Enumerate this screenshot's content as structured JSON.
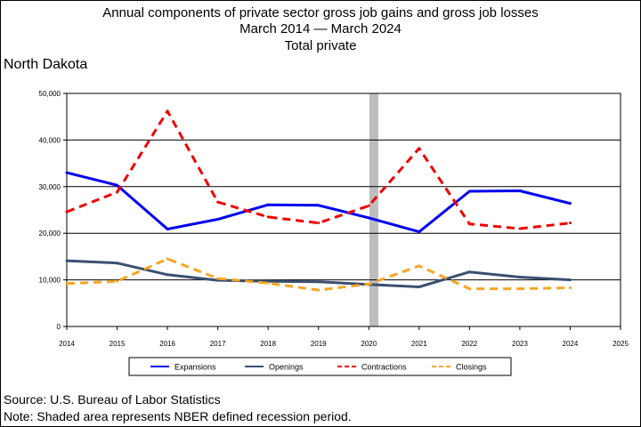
{
  "title": {
    "line1": "Annual components of private sector gross job gains and gross job losses",
    "line2": "March 2014 — March 2024",
    "line3": "Total private"
  },
  "region": "North Dakota",
  "source": "Source: U.S. Bureau of Labor Statistics",
  "note": "Note: Shaded area represents NBER defined recession period.",
  "chart_data": {
    "type": "line",
    "x": [
      2014,
      2015,
      2016,
      2017,
      2018,
      2019,
      2020,
      2021,
      2022,
      2023,
      2024
    ],
    "x_ticks": [
      2014,
      2015,
      2016,
      2017,
      2018,
      2019,
      2020,
      2021,
      2022,
      2023,
      2024,
      2025
    ],
    "x_tick_labels": [
      "2014",
      "2015",
      "2016",
      "2017",
      "2018",
      "2019",
      "2020",
      "2021",
      "2022",
      "2023",
      "2024",
      "2025"
    ],
    "xlim": [
      2014,
      2025
    ],
    "ylim": [
      0,
      50000
    ],
    "y_ticks": [
      0,
      10000,
      20000,
      30000,
      40000,
      50000
    ],
    "y_tick_labels": [
      "0",
      "10,000",
      "20,000",
      "30,000",
      "40,000",
      "50,000"
    ],
    "grid": "horizontal",
    "legend_position": "bottom",
    "recession": {
      "x": 2020.1,
      "color": "#bdbdbd"
    },
    "series": [
      {
        "name": "Expansions",
        "color": "#0000ee",
        "dash": "solid",
        "values": [
          33000,
          30300,
          20900,
          23000,
          26100,
          26000,
          23300,
          20300,
          29000,
          29100,
          26400
        ]
      },
      {
        "name": "Openings",
        "color": "#3a5070",
        "dash": "solid",
        "values": [
          14100,
          13600,
          11100,
          9900,
          9700,
          9600,
          9000,
          8500,
          11700,
          10600,
          10000
        ]
      },
      {
        "name": "Contractions",
        "color": "#ee0000",
        "dash": "dashed",
        "values": [
          24600,
          28800,
          46200,
          26700,
          23500,
          22200,
          25900,
          38200,
          22000,
          21000,
          22200
        ]
      },
      {
        "name": "Closings",
        "color": "#f5a623",
        "dash": "dashed",
        "values": [
          9200,
          9700,
          14500,
          10300,
          9300,
          7800,
          9100,
          13000,
          8100,
          8100,
          8300
        ]
      }
    ]
  }
}
